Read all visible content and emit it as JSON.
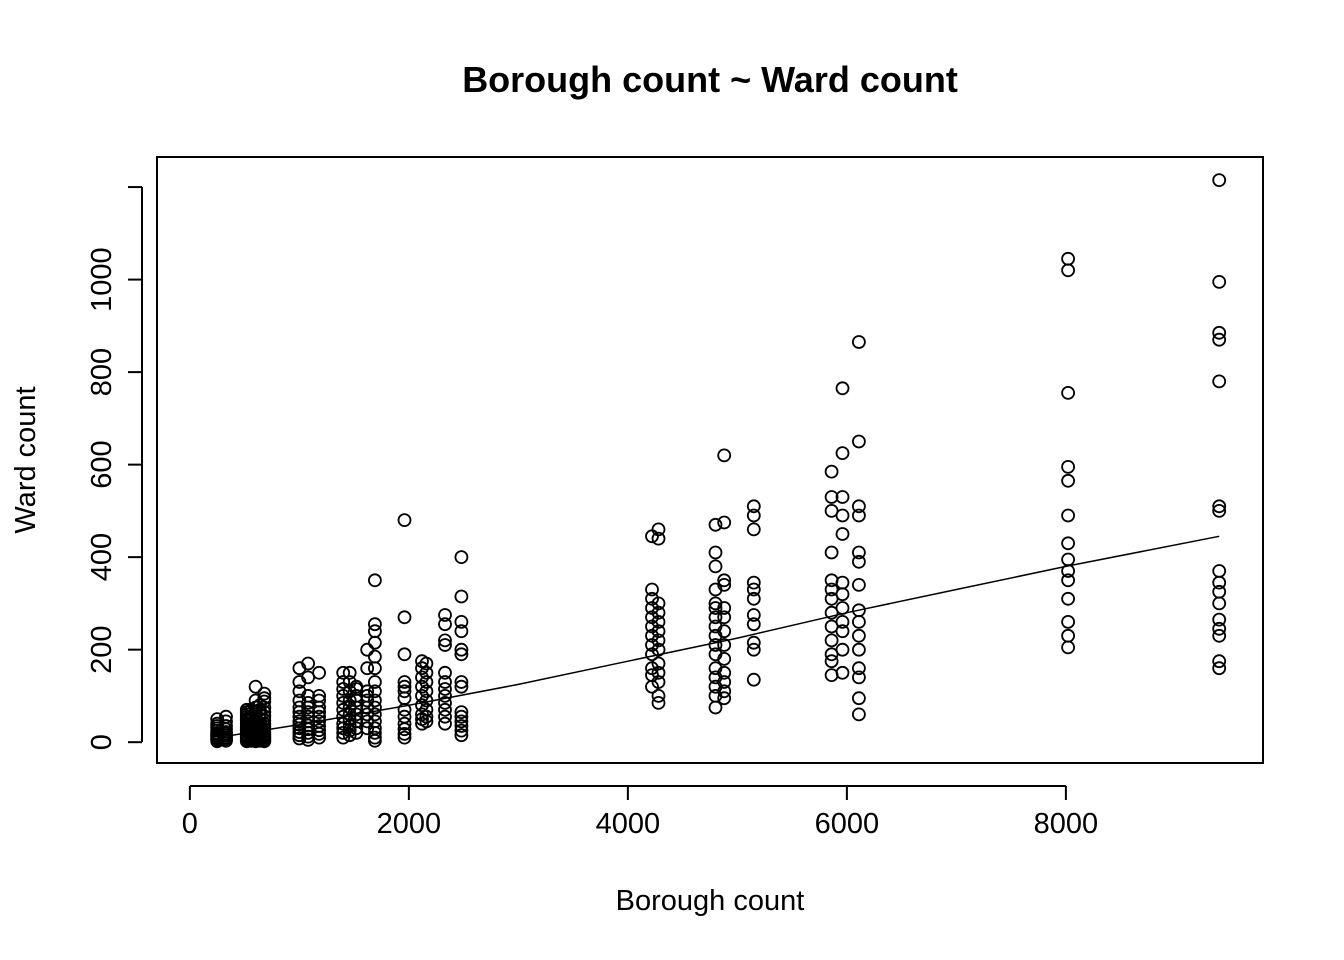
{
  "chart_data": {
    "type": "scatter",
    "title": "Borough count ~ Ward count",
    "xlabel": "Borough count",
    "ylabel": "Ward count",
    "xlim": [
      -300,
      9800
    ],
    "ylim": [
      -45,
      1265
    ],
    "x_ticks": [
      0,
      2000,
      4000,
      6000,
      8000
    ],
    "x_tick_labels": [
      "0",
      "2000",
      "4000",
      "6000",
      "8000"
    ],
    "y_ticks": [
      0,
      200,
      400,
      600,
      800,
      1000,
      1200
    ],
    "y_tick_labels": [
      "0",
      "200",
      "400",
      "600",
      "800",
      "1000",
      ""
    ],
    "grid": false,
    "legend": "none",
    "point_style": "open-circle",
    "colors": {
      "points": "#000000",
      "line": "#000000",
      "background": "#ffffff"
    },
    "groups": [
      {
        "x": 250,
        "y": [
          2,
          5,
          8,
          10,
          12,
          15,
          18,
          20,
          25,
          30,
          35,
          40,
          50
        ]
      },
      {
        "x": 330,
        "y": [
          3,
          6,
          10,
          14,
          18,
          22,
          28,
          35,
          45,
          55
        ]
      },
      {
        "x": 520,
        "y": [
          2,
          5,
          8,
          12,
          15,
          20,
          25,
          30,
          35,
          40,
          45,
          50,
          55,
          60,
          65,
          70
        ]
      },
      {
        "x": 560,
        "y": [
          3,
          6,
          10,
          14,
          18,
          22,
          28,
          34,
          40,
          48,
          55,
          62,
          70
        ]
      },
      {
        "x": 600,
        "y": [
          2,
          5,
          8,
          12,
          16,
          20,
          25,
          30,
          38,
          45,
          55,
          65,
          75,
          90,
          120
        ]
      },
      {
        "x": 640,
        "y": [
          3,
          6,
          10,
          14,
          18,
          24,
          30,
          36,
          42,
          50,
          60,
          70,
          80
        ]
      },
      {
        "x": 680,
        "y": [
          2,
          5,
          9,
          13,
          17,
          22,
          28,
          34,
          40,
          48,
          56,
          65,
          75,
          88,
          95,
          105
        ]
      },
      {
        "x": 1000,
        "y": [
          8,
          15,
          22,
          30,
          38,
          45,
          55,
          65,
          75,
          90,
          110,
          130,
          160
        ]
      },
      {
        "x": 1080,
        "y": [
          5,
          12,
          20,
          28,
          36,
          45,
          55,
          65,
          75,
          85,
          100,
          140,
          170
        ]
      },
      {
        "x": 1180,
        "y": [
          10,
          18,
          26,
          35,
          45,
          55,
          65,
          75,
          90,
          100,
          150
        ]
      },
      {
        "x": 1400,
        "y": [
          10,
          20,
          30,
          40,
          55,
          70,
          85,
          100,
          115,
          130,
          150
        ]
      },
      {
        "x": 1460,
        "y": [
          15,
          25,
          35,
          48,
          60,
          75,
          90,
          110,
          130,
          150
        ]
      },
      {
        "x": 1520,
        "y": [
          20,
          30,
          45,
          60,
          75,
          90,
          100,
          115,
          120
        ]
      },
      {
        "x": 1620,
        "y": [
          30,
          45,
          60,
          75,
          90,
          100,
          110,
          160,
          200
        ]
      },
      {
        "x": 1690,
        "y": [
          3,
          10,
          20,
          30,
          45,
          60,
          75,
          90,
          110,
          130,
          160,
          185,
          215,
          240,
          255,
          350
        ]
      },
      {
        "x": 1960,
        "y": [
          10,
          18,
          28,
          40,
          55,
          70,
          95,
          110,
          120,
          130,
          190,
          270,
          480
        ]
      },
      {
        "x": 2120,
        "y": [
          40,
          50,
          60,
          80,
          100,
          120,
          140,
          160,
          175
        ]
      },
      {
        "x": 2160,
        "y": [
          45,
          55,
          70,
          90,
          110,
          130,
          150,
          170
        ]
      },
      {
        "x": 2330,
        "y": [
          40,
          55,
          70,
          85,
          100,
          115,
          130,
          150,
          210,
          220,
          255,
          275
        ]
      },
      {
        "x": 2480,
        "y": [
          15,
          25,
          35,
          45,
          55,
          65,
          120,
          130,
          190,
          200,
          240,
          260,
          315,
          400
        ]
      },
      {
        "x": 4220,
        "y": [
          120,
          145,
          160,
          190,
          210,
          230,
          250,
          270,
          290,
          310,
          330,
          445
        ]
      },
      {
        "x": 4280,
        "y": [
          85,
          100,
          130,
          150,
          170,
          200,
          220,
          240,
          260,
          280,
          300,
          440,
          460
        ]
      },
      {
        "x": 4800,
        "y": [
          75,
          100,
          120,
          140,
          160,
          190,
          210,
          230,
          250,
          270,
          290,
          300,
          330,
          380,
          410,
          470
        ]
      },
      {
        "x": 4880,
        "y": [
          95,
          110,
          130,
          150,
          180,
          210,
          240,
          270,
          290,
          340,
          350,
          475,
          620
        ]
      },
      {
        "x": 5150,
        "y": [
          135,
          200,
          215,
          255,
          275,
          310,
          330,
          345,
          460,
          490,
          510
        ]
      },
      {
        "x": 5860,
        "y": [
          145,
          175,
          190,
          220,
          250,
          280,
          310,
          330,
          350,
          410,
          500,
          530,
          585
        ]
      },
      {
        "x": 5960,
        "y": [
          150,
          200,
          240,
          260,
          290,
          320,
          345,
          450,
          490,
          530,
          625,
          765
        ]
      },
      {
        "x": 6110,
        "y": [
          60,
          95,
          140,
          160,
          200,
          230,
          260,
          285,
          340,
          390,
          410,
          490,
          510,
          650,
          865
        ]
      },
      {
        "x": 8020,
        "y": [
          205,
          230,
          260,
          310,
          350,
          370,
          395,
          430,
          490,
          565,
          595,
          755,
          1020,
          1045
        ]
      },
      {
        "x": 9400,
        "y": [
          160,
          175,
          230,
          245,
          265,
          300,
          325,
          345,
          370,
          500,
          510,
          780,
          870,
          885,
          995,
          1215
        ]
      }
    ],
    "trend_line": {
      "x": [
        250,
        1000,
        2000,
        3000,
        4000,
        5000,
        6000,
        7000,
        8000,
        9400
      ],
      "y": [
        10,
        38,
        80,
        125,
        175,
        225,
        280,
        330,
        380,
        445
      ]
    }
  }
}
